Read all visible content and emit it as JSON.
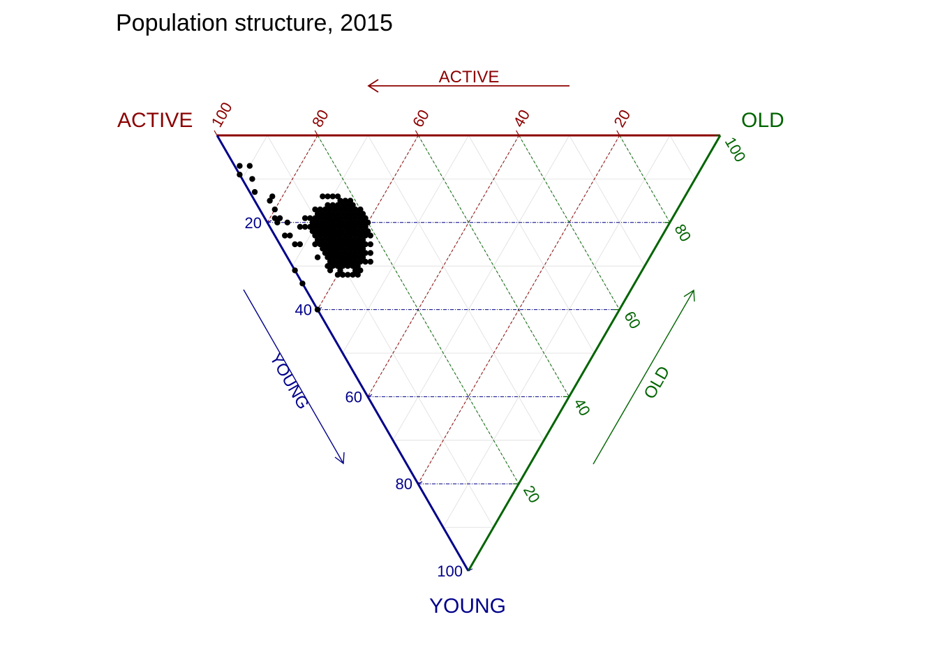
{
  "chart_data": {
    "type": "scatter",
    "subtype": "ternary",
    "title": "Population structure, 2015",
    "axes": {
      "active": {
        "label": "ACTIVE",
        "arrow_label": "ACTIVE",
        "color": "#8B0000",
        "ticks": [
          "20",
          "40",
          "60",
          "80",
          "100"
        ]
      },
      "old": {
        "label": "OLD",
        "arrow_label": "OLD",
        "color": "#006400",
        "ticks": [
          "20",
          "40",
          "60",
          "80",
          "100"
        ]
      },
      "young": {
        "label": "YOUNG",
        "arrow_label": "YOUNG",
        "color": "#00008B",
        "ticks": [
          "20",
          "40",
          "60",
          "80",
          "100"
        ]
      }
    },
    "tick_values": [
      20,
      40,
      60,
      80,
      100
    ],
    "grid": true,
    "point_color": "#000000",
    "points": [
      [
        69,
        0,
        31
      ],
      [
        66,
        0,
        34
      ],
      [
        60,
        0,
        40
      ],
      [
        74,
        3,
        23
      ],
      [
        78,
        2,
        20
      ],
      [
        88,
        2,
        10
      ],
      [
        90,
        3,
        7
      ],
      [
        86,
        1,
        13
      ],
      [
        91,
        0,
        9
      ],
      [
        92,
        1,
        7
      ],
      [
        75,
        2,
        23
      ],
      [
        72,
        3,
        25
      ],
      [
        71,
        4,
        25
      ],
      [
        70,
        8,
        22
      ],
      [
        69,
        10,
        21
      ],
      [
        71,
        8,
        21
      ],
      [
        68,
        7,
        25
      ],
      [
        66,
        6,
        28
      ],
      [
        72,
        7,
        21
      ],
      [
        73,
        6,
        21
      ],
      [
        76,
        4,
        20
      ],
      [
        79,
        2,
        19
      ],
      [
        78,
        3,
        19
      ],
      [
        82,
        3,
        15
      ],
      [
        82,
        4,
        14
      ],
      [
        80,
        3,
        17
      ],
      [
        73,
        8,
        19
      ],
      [
        72,
        9,
        19
      ],
      [
        67,
        14,
        19
      ],
      [
        62,
        16,
        22
      ],
      [
        63,
        16,
        21
      ],
      [
        64,
        14,
        22
      ],
      [
        66,
        12,
        22
      ],
      [
        67,
        12,
        21
      ],
      [
        69,
        11,
        20
      ],
      [
        70,
        12,
        18
      ],
      [
        70,
        11,
        19
      ],
      [
        71,
        11,
        18
      ],
      [
        69,
        13,
        18
      ],
      [
        69,
        12,
        19
      ],
      [
        68,
        11,
        21
      ],
      [
        67,
        11,
        22
      ],
      [
        69,
        10,
        21
      ],
      [
        70,
        9,
        21
      ],
      [
        68,
        10,
        22
      ],
      [
        66,
        11,
        23
      ],
      [
        65,
        11,
        24
      ],
      [
        64,
        12,
        24
      ],
      [
        63,
        12,
        25
      ],
      [
        62,
        13,
        25
      ],
      [
        61,
        14,
        25
      ],
      [
        62,
        14,
        24
      ],
      [
        64,
        13,
        23
      ],
      [
        66,
        12,
        22
      ],
      [
        67,
        12,
        21
      ],
      [
        68,
        12,
        20
      ],
      [
        66,
        14,
        20
      ],
      [
        65,
        14,
        21
      ],
      [
        64,
        15,
        21
      ],
      [
        63,
        15,
        22
      ],
      [
        62,
        15,
        23
      ],
      [
        61,
        15,
        24
      ],
      [
        60,
        15,
        25
      ],
      [
        59,
        15,
        26
      ],
      [
        60,
        14,
        26
      ],
      [
        61,
        13,
        26
      ],
      [
        62,
        12,
        26
      ],
      [
        63,
        11,
        26
      ],
      [
        63,
        10,
        27
      ],
      [
        62,
        11,
        27
      ],
      [
        61,
        12,
        27
      ],
      [
        60,
        13,
        27
      ],
      [
        59,
        14,
        27
      ],
      [
        58,
        14,
        28
      ],
      [
        57,
        15,
        28
      ],
      [
        58,
        13,
        29
      ],
      [
        59,
        12,
        29
      ],
      [
        60,
        11,
        29
      ],
      [
        61,
        10,
        29
      ],
      [
        61,
        9,
        30
      ],
      [
        60,
        10,
        30
      ],
      [
        59,
        11,
        30
      ],
      [
        58,
        12,
        30
      ],
      [
        57,
        13,
        30
      ],
      [
        58,
        10,
        32
      ],
      [
        59,
        9,
        32
      ],
      [
        57,
        11,
        32
      ],
      [
        56,
        12,
        32
      ],
      [
        57,
        12,
        31
      ],
      [
        56,
        13,
        31
      ],
      [
        65,
        14,
        21
      ],
      [
        63,
        14,
        23
      ],
      [
        62,
        16,
        22
      ],
      [
        61,
        16,
        23
      ],
      [
        60,
        16,
        24
      ],
      [
        59,
        16,
        25
      ],
      [
        58,
        17,
        25
      ],
      [
        60,
        17,
        23
      ],
      [
        61,
        17,
        22
      ],
      [
        62,
        17,
        21
      ],
      [
        63,
        17,
        20
      ],
      [
        64,
        16,
        20
      ],
      [
        65,
        16,
        19
      ],
      [
        66,
        15,
        19
      ],
      [
        66,
        16,
        18
      ],
      [
        65,
        17,
        18
      ],
      [
        64,
        17,
        19
      ],
      [
        63,
        18,
        19
      ],
      [
        62,
        18,
        20
      ],
      [
        61,
        18,
        21
      ],
      [
        60,
        18,
        22
      ],
      [
        59,
        18,
        23
      ],
      [
        60,
        19,
        21
      ],
      [
        61,
        19,
        20
      ],
      [
        62,
        19,
        19
      ],
      [
        63,
        19,
        18
      ],
      [
        64,
        19,
        17
      ],
      [
        65,
        18,
        17
      ],
      [
        66,
        17,
        17
      ],
      [
        67,
        16,
        17
      ],
      [
        67,
        15,
        18
      ],
      [
        68,
        15,
        17
      ],
      [
        68,
        14,
        18
      ],
      [
        68,
        13,
        19
      ],
      [
        67,
        13,
        20
      ],
      [
        66,
        13,
        21
      ],
      [
        65,
        13,
        22
      ],
      [
        64,
        13,
        23
      ],
      [
        63,
        13,
        24
      ],
      [
        64,
        11,
        25
      ],
      [
        65,
        10,
        25
      ],
      [
        66,
        9,
        25
      ],
      [
        67,
        9,
        24
      ],
      [
        68,
        9,
        23
      ],
      [
        69,
        9,
        22
      ],
      [
        70,
        10,
        20
      ],
      [
        71,
        10,
        19
      ],
      [
        71,
        9,
        20
      ],
      [
        70,
        8,
        22
      ],
      [
        69,
        8,
        23
      ],
      [
        68,
        8,
        24
      ],
      [
        67,
        8,
        25
      ],
      [
        66,
        8,
        26
      ],
      [
        65,
        8,
        27
      ],
      [
        64,
        9,
        27
      ],
      [
        63,
        9,
        28
      ],
      [
        62,
        9,
        29
      ],
      [
        62,
        10,
        28
      ],
      [
        63,
        10,
        27
      ],
      [
        64,
        10,
        26
      ],
      [
        65,
        9,
        26
      ],
      [
        66,
        10,
        24
      ],
      [
        67,
        10,
        23
      ],
      [
        68,
        10,
        22
      ],
      [
        64,
        12,
        24
      ],
      [
        63,
        12,
        25
      ],
      [
        65,
        12,
        23
      ],
      [
        66,
        11,
        23
      ],
      [
        67,
        11,
        22
      ],
      [
        62,
        14,
        24
      ],
      [
        61,
        14,
        25
      ],
      [
        60,
        12,
        28
      ],
      [
        59,
        13,
        28
      ],
      [
        58,
        13,
        29
      ],
      [
        57,
        14,
        29
      ],
      [
        58,
        15,
        27
      ],
      [
        59,
        15,
        26
      ],
      [
        60,
        15,
        25
      ],
      [
        66,
        18,
        16
      ],
      [
        67,
        17,
        16
      ],
      [
        68,
        16,
        16
      ],
      [
        69,
        15,
        16
      ],
      [
        70,
        14,
        16
      ],
      [
        69,
        14,
        17
      ],
      [
        68,
        17,
        15
      ],
      [
        67,
        18,
        15
      ],
      [
        70,
        13,
        17
      ],
      [
        71,
        12,
        17
      ],
      [
        72,
        11,
        17
      ],
      [
        64,
        18,
        18
      ],
      [
        65,
        19,
        16
      ],
      [
        66,
        19,
        15
      ],
      [
        69,
        17,
        14
      ],
      [
        70,
        16,
        14
      ],
      [
        71,
        15,
        14
      ],
      [
        72,
        14,
        14
      ],
      [
        63,
        20,
        17
      ],
      [
        62,
        20,
        18
      ],
      [
        61,
        20,
        19
      ],
      [
        60,
        20,
        20
      ],
      [
        59,
        19,
        22
      ],
      [
        58,
        19,
        23
      ],
      [
        57,
        18,
        25
      ],
      [
        56,
        17,
        27
      ],
      [
        55,
        16,
        29
      ],
      [
        56,
        15,
        29
      ],
      [
        57,
        16,
        27
      ],
      [
        58,
        16,
        26
      ],
      [
        59,
        17,
        24
      ],
      [
        60,
        11,
        29
      ],
      [
        61,
        11,
        28
      ],
      [
        62,
        8,
        30
      ],
      [
        63,
        8,
        29
      ],
      [
        64,
        8,
        28
      ],
      [
        61,
        9,
        30
      ],
      [
        62,
        7,
        31
      ],
      [
        63,
        7,
        30
      ],
      [
        60,
        8,
        32
      ],
      [
        59,
        9,
        32
      ],
      [
        60,
        9,
        31
      ],
      [
        65,
        15,
        20
      ],
      [
        64,
        15,
        21
      ],
      [
        63,
        16,
        21
      ],
      [
        62,
        16,
        22
      ],
      [
        66,
        14,
        20
      ],
      [
        67,
        14,
        19
      ],
      [
        68,
        13,
        19
      ],
      [
        65,
        11,
        24
      ],
      [
        64,
        11,
        25
      ],
      [
        63,
        11,
        26
      ]
    ]
  }
}
